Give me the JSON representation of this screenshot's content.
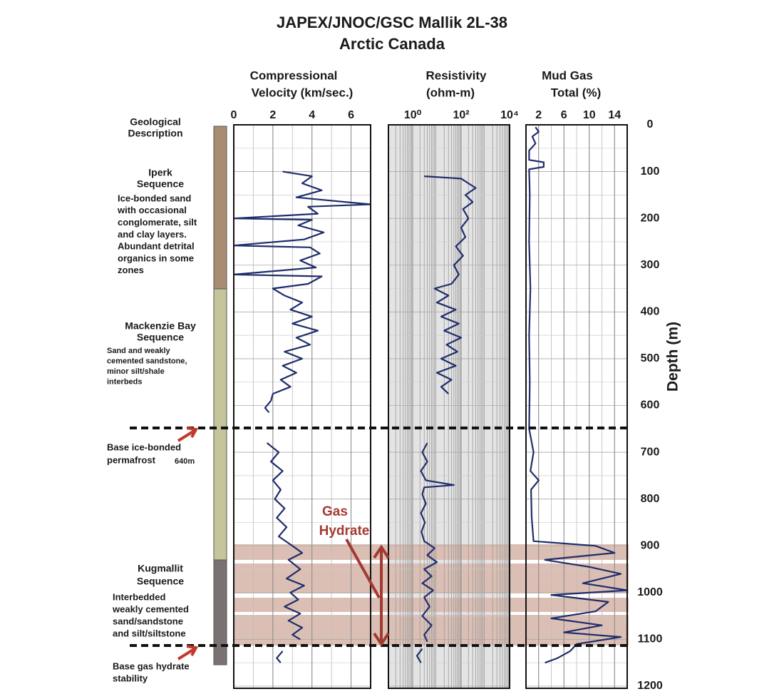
{
  "chart_data": {
    "type": "well-log",
    "title": [
      "JAPEX/JNOC/GSC Mallik 2L-38",
      "Arctic Canada"
    ],
    "depth_label": "Depth (m)",
    "ylim": [
      0,
      1200
    ],
    "yticks": [
      0,
      100,
      200,
      300,
      400,
      500,
      600,
      700,
      800,
      900,
      1000,
      1100,
      1200
    ],
    "grid": true,
    "geology_header": [
      "Geological",
      "Description"
    ],
    "geology": [
      {
        "name": [
          "Iperk",
          "Sequence"
        ],
        "description": [
          "Ice-bonded sand",
          "with occasional",
          "conglomerate, silt",
          "and clay layers.",
          "Abundant detrital",
          "organics in some",
          "zones"
        ]
      },
      {
        "name": [
          "Mackenzie Bay",
          "Sequence"
        ],
        "description": [
          "Sand and weakly",
          "cemented sandstone,",
          "minor silt/shale",
          "interbeds"
        ]
      },
      {
        "name": [
          "Kugmallit",
          "Sequence"
        ],
        "description": [
          "Interbedded",
          "weakly cemented",
          "sand/sandstone",
          "and silt/siltstone"
        ]
      }
    ],
    "annotations": {
      "permafrost": [
        "Base ice-bonded",
        "permafrost"
      ],
      "permafrost_depth": "640m",
      "hydrate_stability": [
        "Base gas hydrate",
        "stability"
      ],
      "gas_hydrate": [
        "Gas",
        "Hydrate"
      ]
    },
    "tracks": [
      {
        "label": [
          "Compressional",
          "Velocity (km/sec.)"
        ],
        "scale": "linear",
        "xlim": [
          0,
          7
        ],
        "xticks": [
          0,
          2,
          4,
          6
        ],
        "series": [
          {
            "color": "#1f2d6b",
            "depth": [
              100,
              110,
              125,
              140,
              155,
              170,
              175,
              190,
              200,
              203,
              215,
              230,
              245,
              258,
              262,
              275,
              290,
              305,
              320,
              324,
              340,
              350,
              365,
              380,
              395,
              410,
              425,
              440,
              455,
              470,
              485,
              500,
              515,
              530,
              545,
              560,
              575,
              590,
              605,
              615,
              650,
              680,
              700,
              720,
              740,
              760,
              780,
              800,
              820,
              840,
              860,
              880,
              900,
              915,
              930,
              950,
              970,
              985,
              1000,
              1015,
              1030,
              1045,
              1060,
              1075,
              1090,
              1100,
              1112,
              1125,
              1140,
              1150
            ],
            "values": [
              2.5,
              4.0,
              3.5,
              4.5,
              3.2,
              7.0,
              3.8,
              4.3,
              0.0,
              4.0,
              3.3,
              4.6,
              3.6,
              0.0,
              3.9,
              4.4,
              3.4,
              4.2,
              0.0,
              4.5,
              3.8,
              2.0,
              2.6,
              3.5,
              2.9,
              4.0,
              3.0,
              4.3,
              3.2,
              3.9,
              2.6,
              3.5,
              2.5,
              3.2,
              2.4,
              2.9,
              2.0,
              1.9,
              1.6,
              1.8,
              null,
              1.7,
              2.3,
              1.9,
              2.5,
              2.0,
              2.4,
              2.1,
              2.6,
              2.2,
              2.7,
              2.3,
              3.0,
              3.5,
              2.8,
              3.4,
              2.7,
              3.6,
              2.9,
              3.3,
              2.6,
              3.4,
              2.8,
              3.5,
              3.0,
              3.4,
              null,
              2.5,
              2.2,
              2.4
            ]
          }
        ]
      },
      {
        "label": [
          "Resistivity",
          "(ohm-m)"
        ],
        "scale": "log",
        "xlim": [
          0.1,
          10000
        ],
        "xticks": [
          {
            "value": 1,
            "label": "10⁰"
          },
          {
            "value": 100,
            "label": "10²"
          },
          {
            "value": 10000,
            "label": "10⁴"
          }
        ],
        "series": [
          {
            "color": "#1f2d6b",
            "depth": [
              110,
              115,
              125,
              135,
              150,
              165,
              180,
              200,
              220,
              240,
              260,
              280,
              300,
              320,
              340,
              350,
              365,
              380,
              395,
              410,
              425,
              440,
              455,
              470,
              485,
              500,
              515,
              530,
              545,
              560,
              575,
              620,
              680,
              700,
              720,
              740,
              760,
              770,
              775,
              790,
              810,
              830,
              850,
              870,
              890,
              905,
              920,
              935,
              950,
              965,
              980,
              995,
              1010,
              1030,
              1050,
              1070,
              1090,
              1105,
              1112,
              1120,
              1135,
              1150
            ],
            "values": [
              3,
              100,
              200,
              400,
              150,
              300,
              120,
              200,
              100,
              150,
              60,
              120,
              50,
              80,
              40,
              8,
              30,
              10,
              60,
              15,
              80,
              20,
              100,
              25,
              70,
              15,
              60,
              10,
              40,
              15,
              30,
              null,
              4,
              2.5,
              4,
              2.2,
              3.5,
              50,
              3,
              2.5,
              3.5,
              2.2,
              3.2,
              2.3,
              3,
              8,
              4,
              10,
              3,
              6,
              2.5,
              7,
              3,
              5,
              2.5,
              6,
              3,
              4,
              null,
              2.5,
              1.5,
              2.2
            ]
          }
        ]
      },
      {
        "label": [
          "Mud Gas",
          "Total (%)"
        ],
        "scale": "linear",
        "xlim": [
          0,
          16
        ],
        "xticks": [
          2,
          6,
          10,
          14
        ],
        "series": [
          {
            "color": "#1f2d6b",
            "depth": [
              5,
              15,
              25,
              40,
              55,
              75,
              80,
              90,
              95,
              150,
              250,
              350,
              450,
              550,
              650,
              700,
              740,
              760,
              780,
              840,
              890,
              900,
              915,
              930,
              945,
              960,
              980,
              995,
              1005,
              1020,
              1040,
              1055,
              1070,
              1085,
              1095,
              1110,
              1125,
              1140,
              1150
            ],
            "values": [
              1.5,
              2.0,
              1.0,
              1.5,
              0.5,
              0.5,
              2.8,
              2.8,
              0.5,
              0.6,
              0.5,
              0.7,
              0.5,
              0.6,
              0.5,
              1.2,
              0.7,
              2.0,
              0.8,
              0.9,
              1.2,
              11,
              14,
              3,
              10,
              15,
              9,
              16,
              4,
              13,
              11,
              4,
              12,
              6,
              15,
              8,
              7,
              5,
              3
            ]
          }
        ]
      }
    ]
  }
}
